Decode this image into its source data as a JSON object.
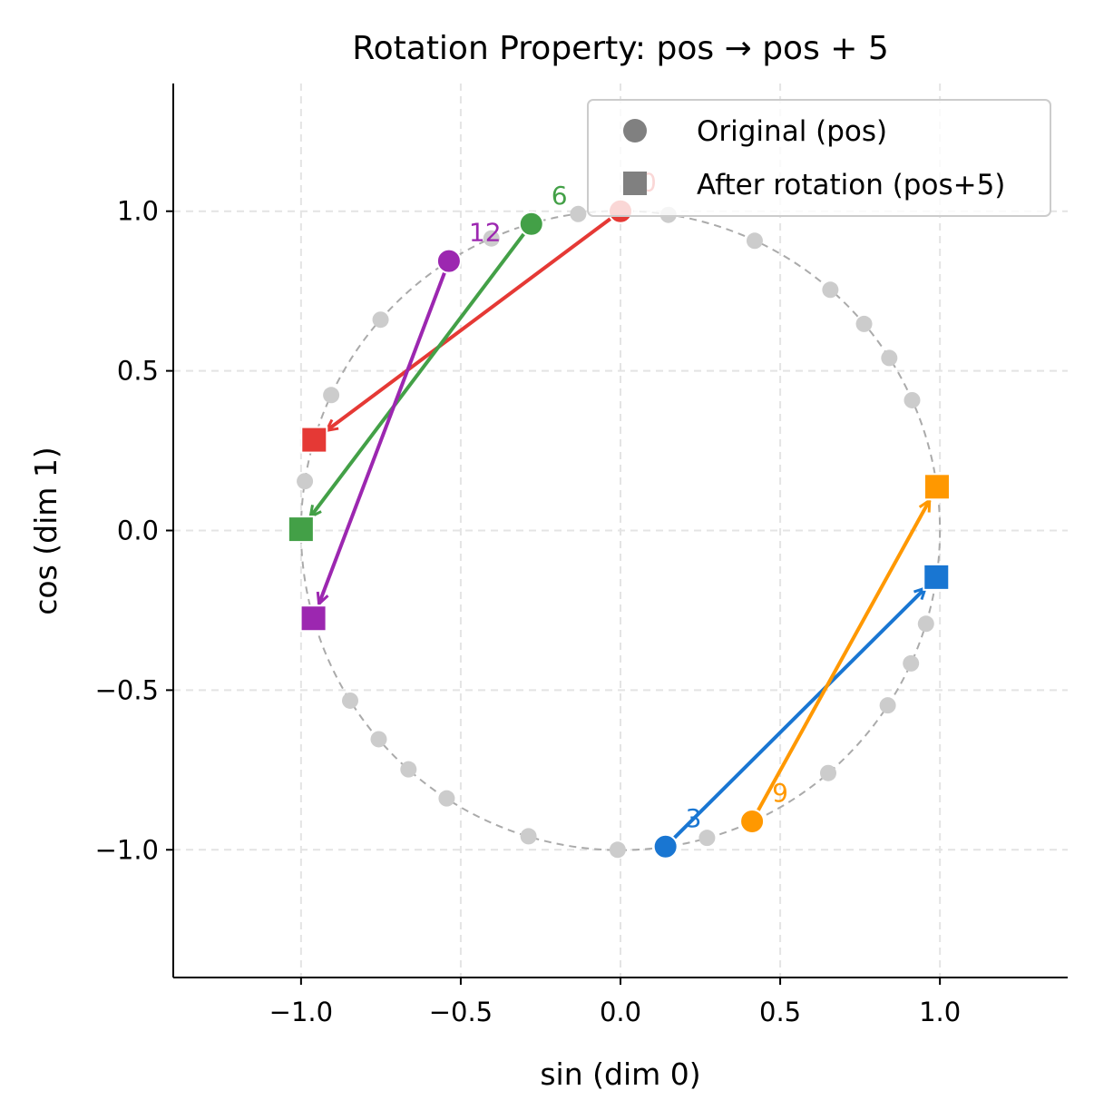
{
  "chart_data": {
    "type": "scatter",
    "title": "Rotation Property: pos → pos + 5",
    "xlabel": "sin (dim 0)",
    "ylabel": "cos (dim 1)",
    "xlim": [
      -1.4,
      1.4
    ],
    "ylim": [
      -1.4,
      1.4
    ],
    "grid": true,
    "xticks": [
      "−1.0",
      "−0.5",
      "0.0",
      "0.5",
      "1.0"
    ],
    "xtick_values": [
      -1,
      -0.5,
      0,
      0.5,
      1
    ],
    "yticks": [
      "−1.0",
      "−0.5",
      "0.0",
      "0.5",
      "1.0"
    ],
    "ytick_values": [
      -1,
      -0.5,
      0,
      0.5,
      1
    ],
    "rotation_offset": 5,
    "background_positions": [
      0,
      1,
      2,
      3,
      4,
      5,
      6,
      7,
      8,
      9,
      10,
      11,
      12,
      13,
      14,
      15,
      16,
      17,
      18,
      19,
      20,
      21,
      22,
      23,
      24,
      25,
      26,
      27,
      28,
      29,
      30,
      31
    ],
    "background_color": "#cccccc",
    "legend": {
      "placement": "top-right",
      "entries": [
        {
          "label": "Original (pos)",
          "marker": "circle",
          "color": "#808080"
        },
        {
          "label": "After rotation (pos+5)",
          "marker": "square",
          "color": "#808080"
        }
      ]
    },
    "series": [
      {
        "label": "0",
        "pos": 0,
        "original": [
          0.0,
          1.0
        ],
        "rotated": [
          -0.959,
          0.284
        ],
        "color": "#e53935"
      },
      {
        "label": "3",
        "pos": 3,
        "original": [
          0.141,
          -0.99
        ],
        "rotated": [
          0.989,
          -0.146
        ],
        "color": "#1976d2"
      },
      {
        "label": "6",
        "pos": 6,
        "original": [
          -0.279,
          0.96
        ],
        "rotated": [
          -1.0,
          0.004
        ],
        "color": "#43a047"
      },
      {
        "label": "9",
        "pos": 9,
        "original": [
          0.412,
          -0.911
        ],
        "rotated": [
          0.991,
          0.137
        ],
        "color": "#ff9800"
      },
      {
        "label": "12",
        "pos": 12,
        "original": [
          -0.537,
          0.844
        ],
        "rotated": [
          -0.961,
          -0.275
        ],
        "color": "#9c27b0"
      }
    ]
  }
}
